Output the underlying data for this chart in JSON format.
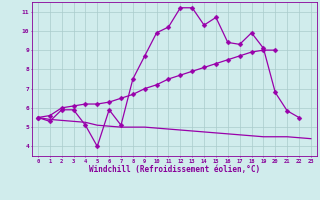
{
  "x": [
    0,
    1,
    2,
    3,
    4,
    5,
    6,
    7,
    8,
    9,
    10,
    11,
    12,
    13,
    14,
    15,
    16,
    17,
    18,
    19,
    20,
    21,
    22,
    23
  ],
  "line1": [
    5.5,
    5.3,
    5.9,
    5.9,
    5.1,
    4.0,
    5.9,
    5.1,
    7.5,
    8.7,
    9.9,
    10.2,
    11.2,
    11.2,
    10.3,
    10.7,
    9.4,
    9.3,
    9.9,
    9.1,
    6.8,
    5.85,
    5.5,
    null
  ],
  "line2": [
    5.5,
    5.6,
    6.0,
    6.1,
    6.2,
    6.2,
    6.3,
    6.5,
    6.7,
    7.0,
    7.2,
    7.5,
    7.7,
    7.9,
    8.1,
    8.3,
    8.5,
    8.7,
    8.9,
    9.0,
    9.0,
    null,
    null,
    null
  ],
  "line3": [
    5.5,
    5.4,
    5.35,
    5.3,
    5.25,
    5.1,
    5.05,
    5.0,
    5.0,
    5.0,
    4.95,
    4.9,
    4.85,
    4.8,
    4.75,
    4.7,
    4.65,
    4.6,
    4.55,
    4.5,
    4.5,
    4.5,
    4.45,
    4.4
  ],
  "line_color": "#9900aa",
  "bg_color": "#d0ecec",
  "grid_color": "#aacccc",
  "axis_color": "#880099",
  "xlabel": "Windchill (Refroidissement éolien,°C)",
  "xlim": [
    -0.5,
    23.5
  ],
  "ylim": [
    3.5,
    11.5
  ],
  "yticks": [
    4,
    5,
    6,
    7,
    8,
    9,
    10,
    11
  ],
  "xticks": [
    0,
    1,
    2,
    3,
    4,
    5,
    6,
    7,
    8,
    9,
    10,
    11,
    12,
    13,
    14,
    15,
    16,
    17,
    18,
    19,
    20,
    21,
    22,
    23
  ],
  "markersize": 2.5,
  "linewidth": 0.9
}
